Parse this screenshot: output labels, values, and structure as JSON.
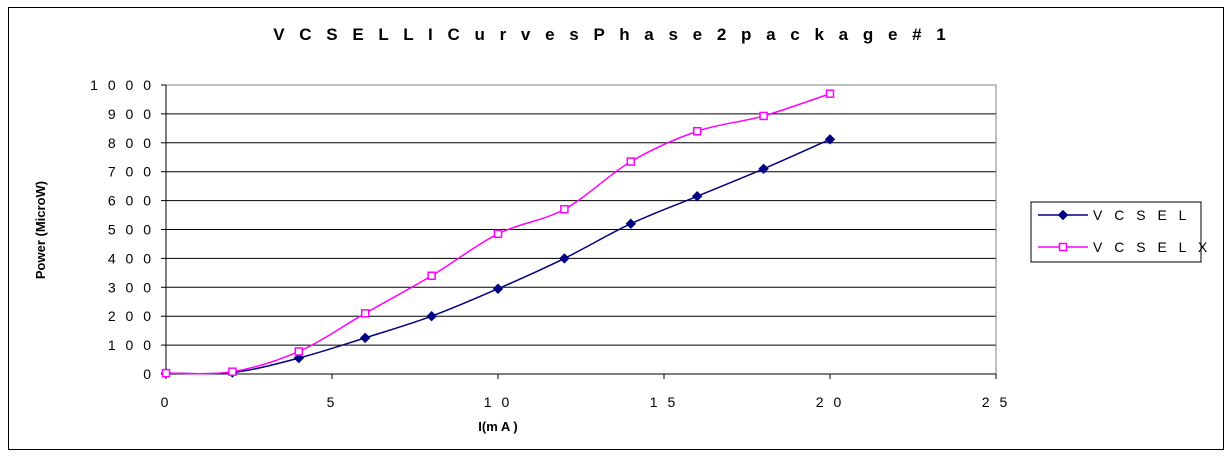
{
  "chart_data": {
    "type": "line",
    "title": "V C S E L  L I  C u r v e s  P h a s e  2  p a c k a g e  # 1",
    "xlabel": "I(m A )",
    "ylabel": "Power (MicroW)",
    "xlim": [
      0,
      25
    ],
    "ylim": [
      0,
      1000
    ],
    "x_ticks": [
      0,
      5,
      10,
      15,
      20,
      25
    ],
    "x_tick_labels": [
      "0",
      "5",
      "1 0",
      "1 5",
      "2 0",
      "2 5"
    ],
    "y_ticks": [
      0,
      100,
      200,
      300,
      400,
      500,
      600,
      700,
      800,
      900,
      1000
    ],
    "y_tick_labels": [
      "0",
      "1 0 0",
      "2 0 0",
      "3 0 0",
      "4 0 0",
      "5 0 0",
      "6 0 0",
      "7 0 0",
      "8 0 0",
      "9 0 0",
      "1 0 0 0"
    ],
    "grid": "horizontal",
    "legend_position": "right",
    "series": [
      {
        "name": "V C S E L",
        "color": "#000080",
        "marker": "diamond",
        "x": [
          0,
          2,
          4,
          6,
          8,
          10,
          12,
          14,
          16,
          18,
          20
        ],
        "y": [
          3,
          5,
          55,
          125,
          200,
          295,
          400,
          520,
          615,
          710,
          812
        ]
      },
      {
        "name": "V C S E L X",
        "color": "#ff00ff",
        "marker": "square",
        "x": [
          0,
          2,
          4,
          6,
          8,
          10,
          12,
          14,
          16,
          18,
          20
        ],
        "y": [
          3,
          8,
          78,
          210,
          340,
          485,
          570,
          735,
          840,
          893,
          970
        ]
      }
    ]
  }
}
